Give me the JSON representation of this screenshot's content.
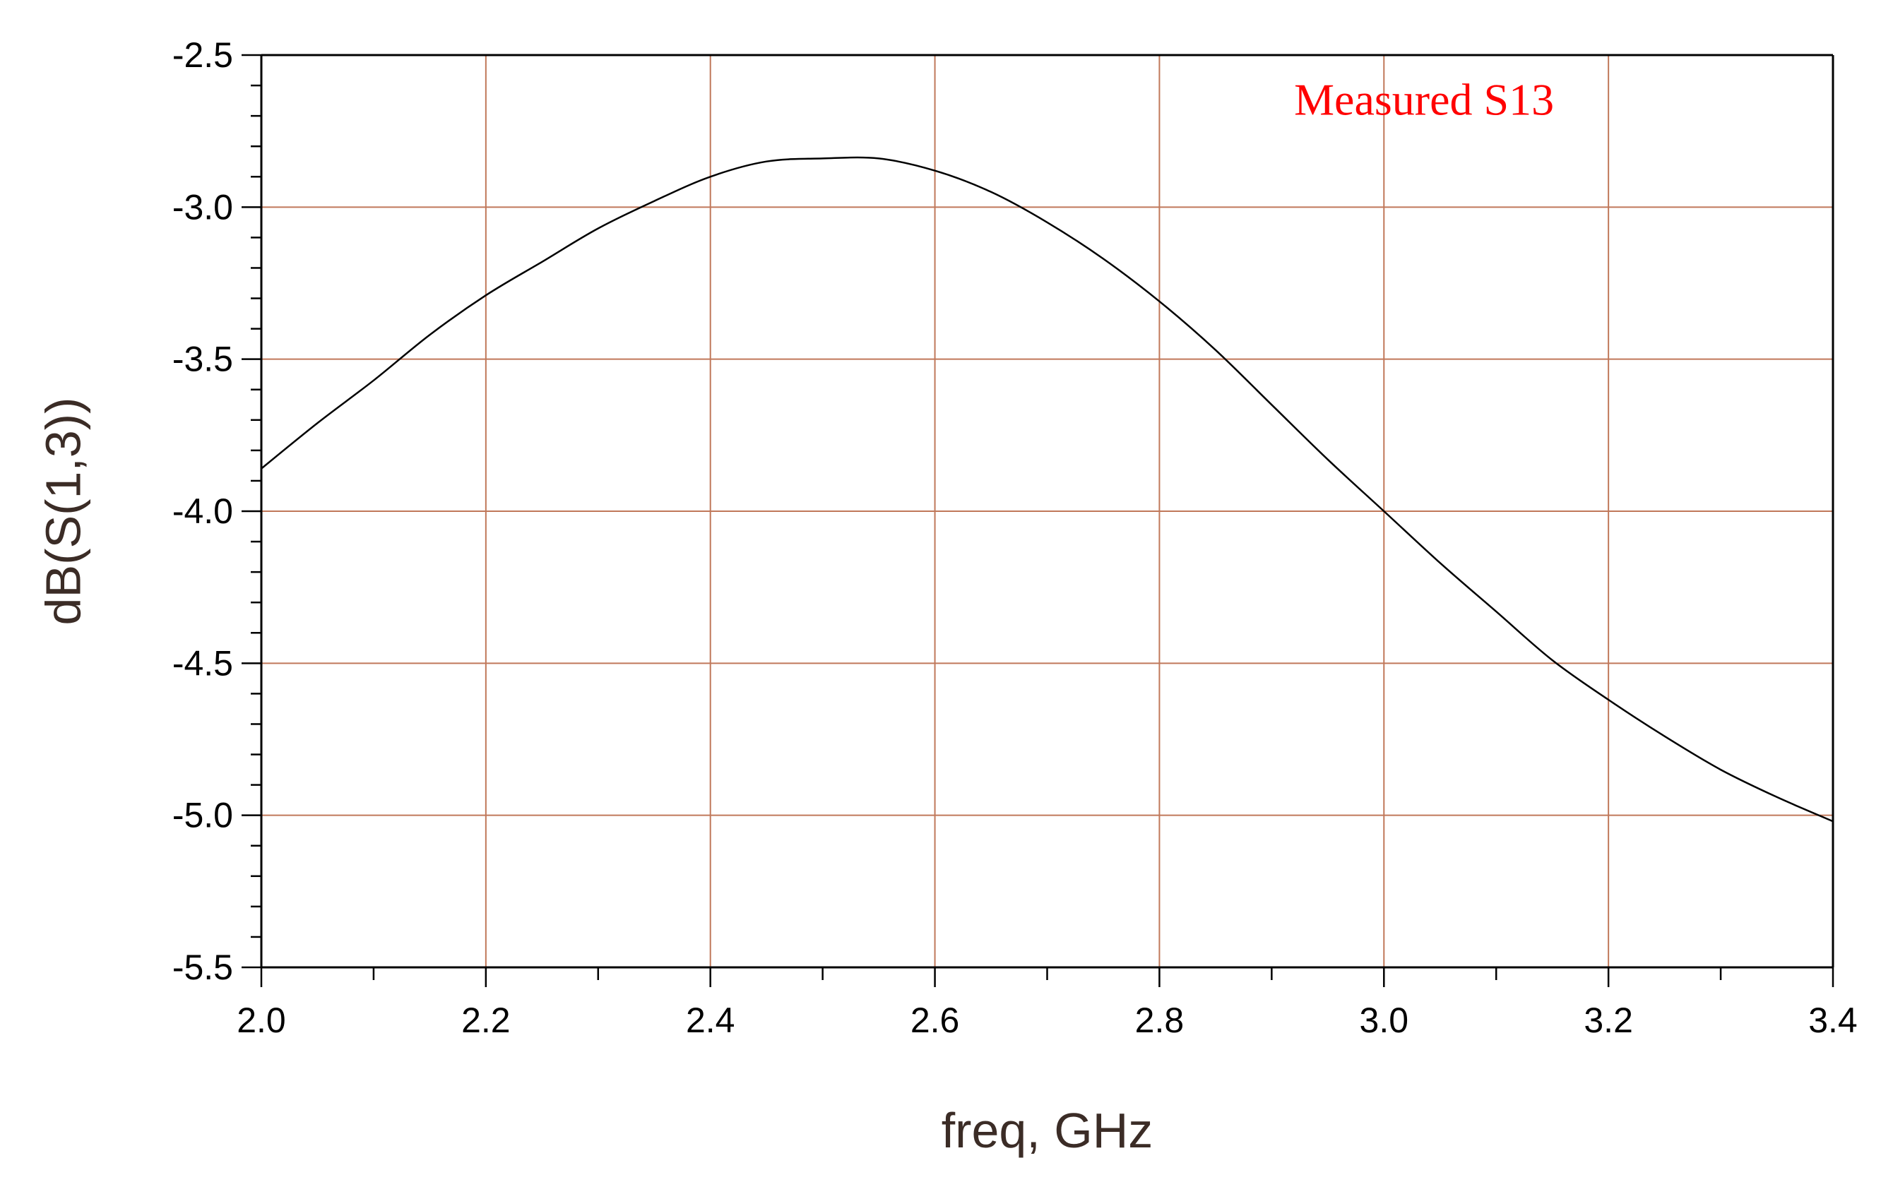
{
  "chart_data": {
    "type": "line",
    "xlabel": "freq, GHz",
    "ylabel": "dB(S(1,3))",
    "xlim": [
      2.0,
      3.4
    ],
    "ylim": [
      -5.5,
      -2.5
    ],
    "xticks": [
      2.0,
      2.2,
      2.4,
      2.6,
      2.8,
      3.0,
      3.2,
      3.4
    ],
    "xtick_labels": [
      "2.0",
      "2.2",
      "2.4",
      "2.6",
      "2.8",
      "3.0",
      "3.2",
      "3.4"
    ],
    "yticks": [
      -2.5,
      -3.0,
      -3.5,
      -4.0,
      -4.5,
      -5.0,
      -5.5
    ],
    "ytick_labels": [
      "-2.5",
      "-3.0",
      "-3.5",
      "-4.0",
      "-4.5",
      "-5.0",
      "-5.5"
    ],
    "grid": true,
    "annotation": {
      "text": "Measured S13",
      "x": 2.92,
      "y": -2.65
    },
    "series": [
      {
        "x": [
          2.0,
          2.05,
          2.1,
          2.15,
          2.2,
          2.25,
          2.3,
          2.35,
          2.4,
          2.45,
          2.5,
          2.55,
          2.6,
          2.65,
          2.7,
          2.75,
          2.8,
          2.85,
          2.9,
          2.95,
          3.0,
          3.05,
          3.1,
          3.15,
          3.2,
          3.25,
          3.3,
          3.35,
          3.4
        ],
        "values": [
          -3.86,
          -3.71,
          -3.57,
          -3.42,
          -3.29,
          -3.18,
          -3.07,
          -2.98,
          -2.9,
          -2.85,
          -2.84,
          -2.84,
          -2.88,
          -2.95,
          -3.05,
          -3.17,
          -3.31,
          -3.47,
          -3.65,
          -3.83,
          -4.0,
          -4.17,
          -4.33,
          -4.49,
          -4.62,
          -4.74,
          -4.85,
          -4.94,
          -5.02
        ]
      }
    ]
  },
  "colors": {
    "grid": "#c0785a",
    "frame": "#000000",
    "line": "#000000",
    "annotation": "#ff0000"
  }
}
